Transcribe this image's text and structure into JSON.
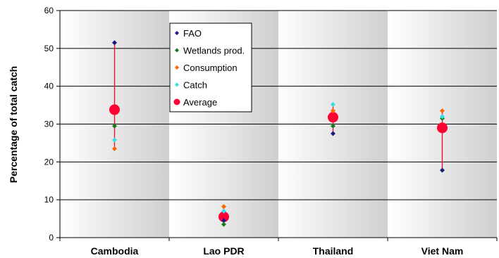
{
  "chart_data": {
    "type": "scatter",
    "title": "",
    "xlabel": "",
    "ylabel": "Percentage of total catch",
    "ylim": [
      0,
      60
    ],
    "yticks": [
      0,
      10,
      20,
      30,
      40,
      50,
      60
    ],
    "grid": true,
    "legend_position": "top-left",
    "categories": [
      "Cambodia",
      "Lao PDR",
      "Thailand",
      "Viet Nam"
    ],
    "series": [
      {
        "name": "FAO",
        "color": "#1a1a80",
        "marker": "diamond",
        "values": [
          51.5,
          4.5,
          27.5,
          17.8
        ]
      },
      {
        "name": "Wetlands prod.",
        "color": "#1a7a1a",
        "marker": "diamond",
        "values": [
          29.5,
          3.5,
          29.5,
          31.5
        ]
      },
      {
        "name": "Consumption",
        "color": "#ff6600",
        "marker": "diamond",
        "values": [
          23.5,
          8.2,
          33.5,
          33.5
        ]
      },
      {
        "name": "Catch",
        "color": "#33e0e6",
        "marker": "diamond",
        "values": [
          25.8,
          7.0,
          35.2,
          32.0
        ]
      },
      {
        "name": "Average",
        "color": "#ff0033",
        "marker": "circle",
        "values": [
          33.8,
          5.5,
          31.8,
          29.0
        ]
      }
    ],
    "range_line_color": "#ff0033"
  }
}
